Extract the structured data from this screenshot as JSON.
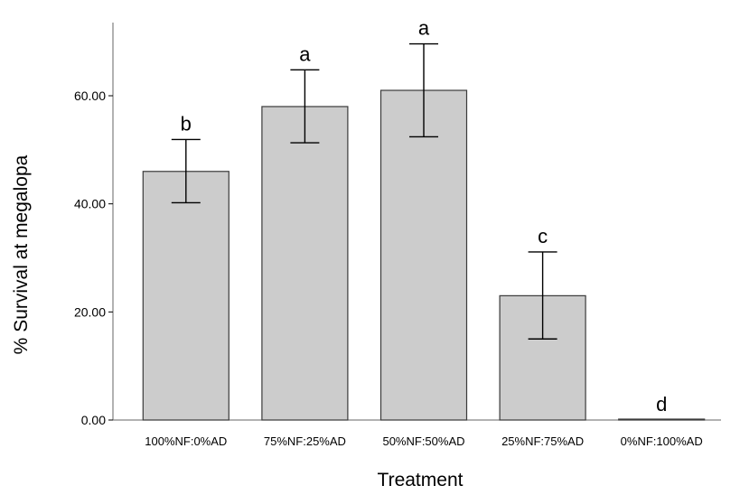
{
  "chart_data": {
    "type": "bar",
    "xlabel": "Treatment",
    "ylabel": "% Survival at megalopa",
    "ylim": [
      0,
      74
    ],
    "yticks": [
      "0.00",
      "20.00",
      "40.00",
      "60.00"
    ],
    "ytick_values": [
      0,
      20,
      40,
      60
    ],
    "categories": [
      "100%NF:0%AD",
      "75%NF:25%AD",
      "50%NF:50%AD",
      "25%NF:75%AD",
      "0%NF:100%AD"
    ],
    "values": [
      46,
      58,
      61,
      23,
      0
    ],
    "error_low": [
      40.2,
      51.3,
      52.4,
      15,
      0
    ],
    "error_high": [
      51.9,
      64.8,
      69.6,
      31.1,
      0
    ],
    "significance_letters": [
      "b",
      "a",
      "a",
      "c",
      "d"
    ],
    "bar_color": "#cccccc",
    "bar_edge_color": "#3a3a3a",
    "grid": false
  }
}
